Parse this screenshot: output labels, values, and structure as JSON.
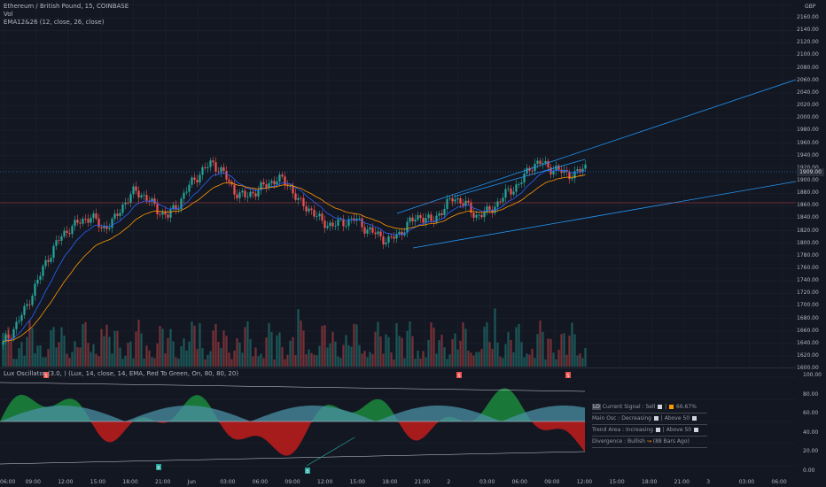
{
  "legend": {
    "symbol": "Ethereum / British Pound, 15, COINBASE",
    "vol": "Vol",
    "ema": "EMA12&26 (12, close, 26, close)"
  },
  "oscillator": {
    "legend_prefix": "Lux Oscillator (3.0, ",
    "legend_suffix": ") (Lux, 14, close, 14, EMA, Red To Green, On, 80, 80, 20)"
  },
  "dashboard": {
    "row1_tag": "LO",
    "row1_text": "Current Signal : Sell",
    "row1_value": "66.67%",
    "row2_text": "Main Osc : Decreasing",
    "row2_tail": "| Above 50",
    "row3_text": "Trend Area : Increasing",
    "row3_tail": "| Above 50",
    "row4_text": "Divergence : Bullish",
    "row4_tail": "(88 Bars Ago)"
  },
  "price_scale": {
    "currency": "GBP",
    "labels": [
      "2160.00",
      "2140.00",
      "2120.00",
      "2100.00",
      "2080.00",
      "2060.00",
      "2040.00",
      "2020.00",
      "2000.00",
      "1980.00",
      "1960.00",
      "1940.00",
      "1920.00",
      "1900.00",
      "1880.00",
      "1860.00",
      "1840.00",
      "1820.00",
      "1800.00",
      "1780.00",
      "1760.00",
      "1740.00",
      "1720.00",
      "1700.00",
      "1680.00",
      "1660.00",
      "1640.00",
      "1620.00",
      "1600.00"
    ],
    "current_price": "1909.00"
  },
  "osc_scale": {
    "labels": [
      "100.00",
      "80.00",
      "60.00",
      "40.00",
      "20.00",
      "0.00"
    ]
  },
  "time_axis": {
    "labels": [
      "06:00",
      "09:00",
      "12:00",
      "15:00",
      "18:00",
      "21:00",
      "Jun",
      "03:00",
      "06:00",
      "09:00",
      "12:00",
      "15:00",
      "18:00",
      "21:00",
      "2",
      "03:00",
      "06:00",
      "09:00",
      "12:00",
      "15:00",
      "18:00",
      "21:00",
      "3",
      "03:00",
      "06:00"
    ]
  },
  "signals": {
    "sell_label": "S",
    "buy_label": "B"
  },
  "colors": {
    "bull": "#26a69a",
    "bear": "#ef5350",
    "channel": "#2196f3",
    "ema12": "#2962ff",
    "ema26": "#ff9800",
    "osc_green": "#1b8a3c",
    "osc_red": "#b71c1c",
    "osc_blue": "#4a90a4"
  },
  "chart_data": {
    "type": "line",
    "title": "Ethereum / British Pound, 15, COINBASE",
    "xlabel": "",
    "ylabel": "",
    "ylim": [
      1600,
      2170
    ],
    "series": [
      {
        "name": "Ethereum / British Pound",
        "values": [
          1625,
          1650,
          1680,
          1720,
          1760,
          1790,
          1810,
          1820,
          1830,
          1810,
          1820,
          1850,
          1870,
          1860,
          1840,
          1830,
          1850,
          1880,
          1900,
          1915,
          1900,
          1870,
          1860,
          1870,
          1880,
          1890,
          1880,
          1850,
          1840,
          1820,
          1815,
          1820,
          1825,
          1810,
          1800,
          1790,
          1800,
          1820,
          1830,
          1820,
          1840,
          1860,
          1850,
          1830,
          1835,
          1850,
          1870,
          1880,
          1910,
          1915,
          1905,
          1900,
          1895,
          1909
        ]
      }
    ]
  }
}
